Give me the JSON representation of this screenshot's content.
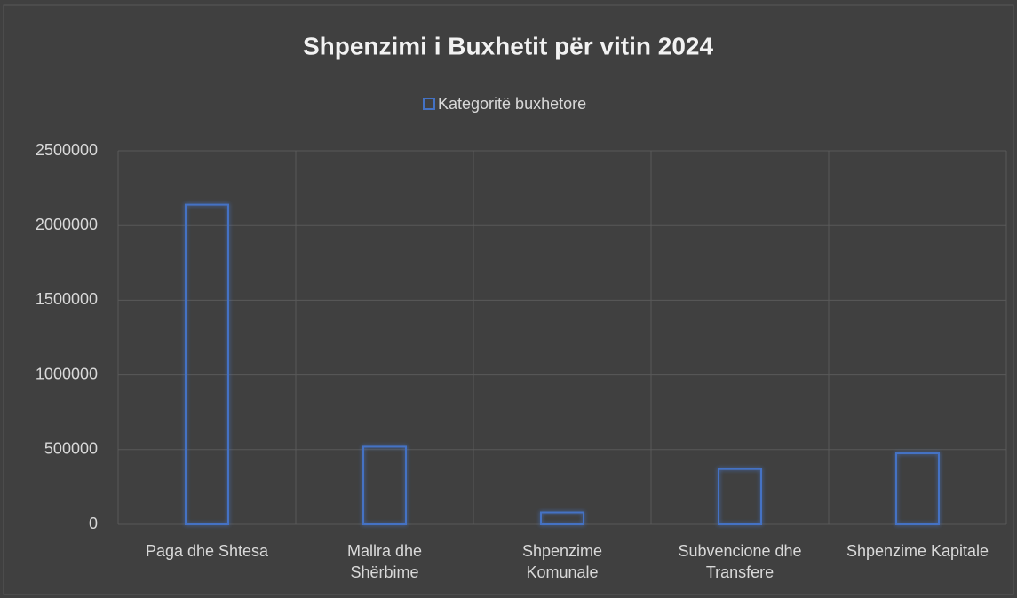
{
  "chart_data": {
    "type": "bar",
    "title": "Shpenzimi i Buxhetit për vitin 2024",
    "categories": [
      "Paga dhe Shtesa",
      "Mallra dhe Shërbime",
      "Shpenzime Komunale",
      "Subvencione dhe Transfere",
      "Shpenzime Kapitale"
    ],
    "series": [
      {
        "name": "Kategoritë buxhetore",
        "color": "#4472c4",
        "values": [
          2140000,
          520000,
          80000,
          370000,
          475000
        ]
      }
    ],
    "ylim": [
      0,
      2500000
    ],
    "yticks": [
      0,
      500000,
      1000000,
      1500000,
      2000000,
      2500000
    ],
    "grid": true,
    "legend": "top"
  }
}
